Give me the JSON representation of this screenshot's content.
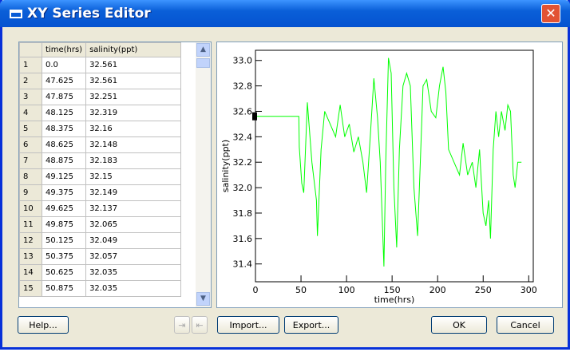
{
  "window": {
    "title": "XY Series Editor"
  },
  "table": {
    "columns": [
      "time(hrs)",
      "salinity(ppt)"
    ],
    "rows": [
      [
        "1",
        "0.0",
        "32.561"
      ],
      [
        "2",
        "47.625",
        "32.561"
      ],
      [
        "3",
        "47.875",
        "32.251"
      ],
      [
        "4",
        "48.125",
        "32.319"
      ],
      [
        "5",
        "48.375",
        "32.16"
      ],
      [
        "6",
        "48.625",
        "32.148"
      ],
      [
        "7",
        "48.875",
        "32.183"
      ],
      [
        "8",
        "49.125",
        "32.15"
      ],
      [
        "9",
        "49.375",
        "32.149"
      ],
      [
        "10",
        "49.625",
        "32.137"
      ],
      [
        "11",
        "49.875",
        "32.065"
      ],
      [
        "12",
        "50.125",
        "32.049"
      ],
      [
        "13",
        "50.375",
        "32.057"
      ],
      [
        "14",
        "50.625",
        "32.035"
      ],
      [
        "15",
        "50.875",
        "32.035"
      ]
    ]
  },
  "chart_data": {
    "type": "line",
    "x_label": "time(hrs)",
    "y_label": "salinity(ppt)",
    "color": "#00ff00",
    "x": [
      0,
      47.625,
      48.125,
      50.875,
      53,
      57,
      62,
      67,
      68,
      72,
      76,
      82,
      88,
      93,
      98,
      103,
      108,
      113,
      118,
      122,
      126,
      130,
      134,
      137,
      141,
      143,
      146,
      149,
      152,
      155,
      158,
      162,
      166,
      170,
      174,
      178,
      181,
      184,
      188,
      193,
      198,
      202,
      206,
      209,
      212,
      218,
      224,
      228,
      233,
      238,
      242,
      246,
      250,
      253,
      256,
      258,
      261,
      264,
      267,
      270,
      274,
      277,
      280,
      283,
      285,
      288,
      292
    ],
    "values": [
      32.561,
      32.561,
      32.319,
      32.035,
      31.96,
      32.67,
      32.2,
      31.9,
      31.62,
      32.3,
      32.6,
      32.5,
      32.4,
      32.65,
      32.4,
      32.5,
      32.28,
      32.4,
      32.2,
      31.96,
      32.4,
      32.86,
      32.55,
      32.2,
      31.38,
      32.2,
      33.02,
      32.9,
      32.0,
      31.53,
      32.3,
      32.8,
      32.9,
      32.8,
      32.0,
      31.62,
      32.2,
      32.8,
      32.85,
      32.6,
      32.55,
      32.8,
      32.95,
      32.75,
      32.3,
      32.2,
      32.1,
      32.35,
      32.1,
      32.2,
      32.0,
      32.3,
      31.8,
      31.7,
      31.9,
      31.6,
      32.3,
      32.6,
      32.4,
      32.6,
      32.45,
      32.65,
      32.6,
      32.1,
      32.0,
      32.2,
      32.2
    ],
    "xlim": [
      0,
      305
    ],
    "xticks": [
      0,
      50,
      100,
      150,
      200,
      250,
      300
    ],
    "ylim": [
      31.26,
      33.08
    ],
    "yticks": [
      31.4,
      31.6,
      31.8,
      {
        "value": 32,
        "label": "32.0"
      },
      32.2,
      32.4,
      32.6,
      32.8,
      {
        "value": 33,
        "label": "33.0"
      }
    ]
  },
  "buttons": {
    "help": "Help...",
    "import": "Import...",
    "export": "Export...",
    "ok": "OK",
    "cancel": "Cancel"
  }
}
